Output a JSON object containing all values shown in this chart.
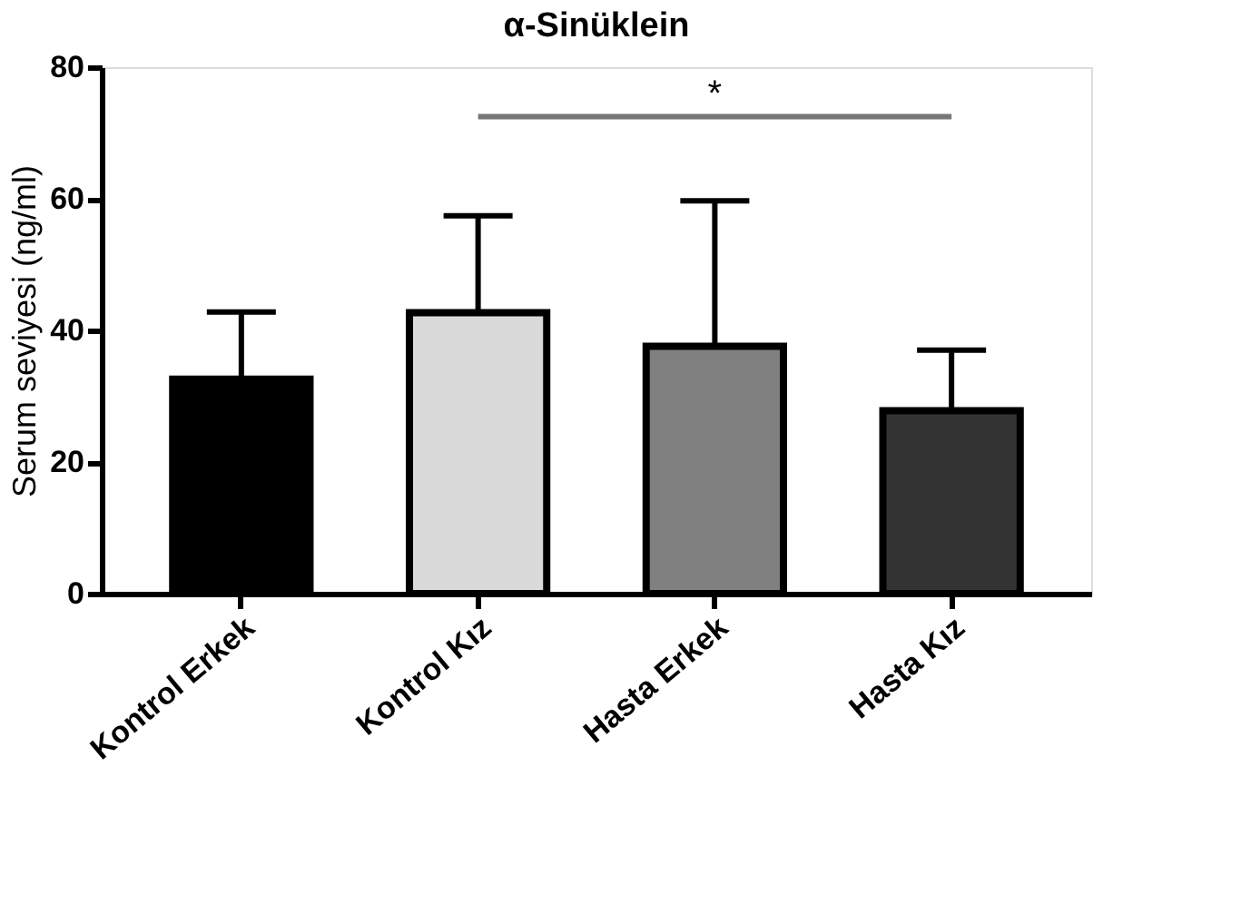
{
  "chart_data": {
    "type": "bar",
    "title": "α-Sinüklein",
    "ylabel": "Serum seviyesi (ng/ml)",
    "categories": [
      "Kontrol Erkek",
      "Kontrol Kız",
      "Hasta Erkek",
      "Hasta Kız"
    ],
    "values": [
      32.6,
      42.7,
      37.6,
      27.8
    ],
    "errors": [
      [
        32.6,
        42.8
      ],
      [
        42.7,
        57.4
      ],
      [
        37.6,
        59.7
      ],
      [
        27.8,
        37.0
      ]
    ],
    "colors": [
      "#000000",
      "#d9d9d9",
      "#808080",
      "#333333"
    ],
    "ylim": [
      0,
      80
    ],
    "yticks": [
      0,
      20,
      40,
      60,
      80
    ],
    "grid": false,
    "annotations": [
      "*"
    ]
  }
}
